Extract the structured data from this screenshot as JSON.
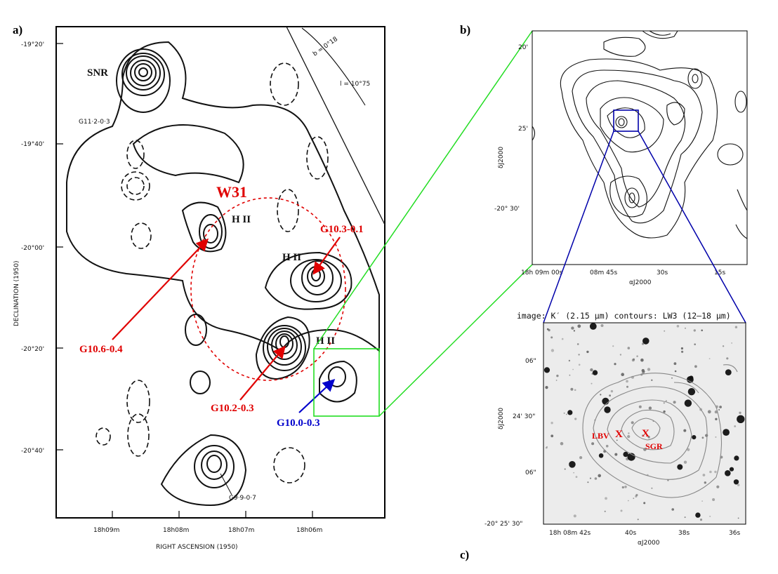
{
  "colors": {
    "red": "#e00000",
    "blue": "#0000cc",
    "green": "#22dd22",
    "darkblue": "#0000aa"
  },
  "panel_a": {
    "label": "a)",
    "y_ticks": [
      "-19°20'",
      "-19°40'",
      "-20°00'",
      "-20°20'",
      "-20°40'"
    ],
    "x_ticks": [
      "18h09m",
      "18h08m",
      "18h07m",
      "18h06m"
    ],
    "y_axis_label": "DECLINATION (1950)",
    "x_axis_label": "RIGHT ASCENSION (1950)",
    "snr_label": "SNR",
    "source_g112": "G11·2-0·3",
    "source_g099": "G9·9-0·7",
    "w31_label": "W31",
    "hii_label": "H II",
    "b_line": "b = 0°18",
    "l_line": "l = 10°75",
    "red_sources": [
      "G10.3-0.1",
      "G10.6-0.4",
      "G10.2-0.3"
    ],
    "blue_source": "G10.0-0.3"
  },
  "panel_b": {
    "label": "b)",
    "y_ticks": [
      "20'",
      "25'",
      "-20° 30'"
    ],
    "x_ticks": [
      "18h 09m 00s",
      "08m 45s",
      "30s",
      "15s"
    ],
    "y_axis_label": "δJ2000",
    "x_axis_label": "αJ2000"
  },
  "panel_c": {
    "label": "c)",
    "title": "image: K′ (2.15 μm)  contours: LW3 (12–18 μm)",
    "y_ticks": [
      "06\"",
      "24' 30\"",
      "06\"",
      "-20° 25' 30\""
    ],
    "x_ticks": [
      "18h 08m 42s",
      "40s",
      "38s",
      "36s"
    ],
    "y_axis_label": "δJ2000",
    "x_axis_label": "αJ2000",
    "lbv_label": "LBV",
    "sgr_label": "SGR",
    "marker": "X"
  }
}
